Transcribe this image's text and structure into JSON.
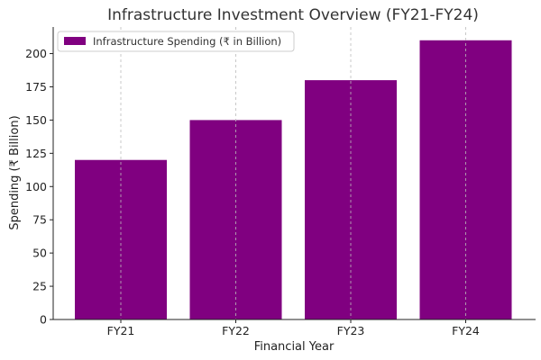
{
  "chart_data": {
    "type": "bar",
    "title": "Infrastructure Investment Overview (FY21-FY24)",
    "xlabel": "Financial Year",
    "ylabel": "Spending (₹ Billion)",
    "categories": [
      "FY21",
      "FY22",
      "FY23",
      "FY24"
    ],
    "series": [
      {
        "name": "Infrastructure Spending (₹ in Billion)",
        "values": [
          120,
          150,
          180,
          210
        ]
      }
    ],
    "ylim": [
      0,
      220
    ],
    "yticks": [
      0,
      25,
      50,
      75,
      100,
      125,
      150,
      175,
      200
    ],
    "grid": "x-dashed",
    "legend": "top-left",
    "colors": {
      "bar": "#800080",
      "grid": "#bbbbbb",
      "axis": "#222222"
    }
  }
}
